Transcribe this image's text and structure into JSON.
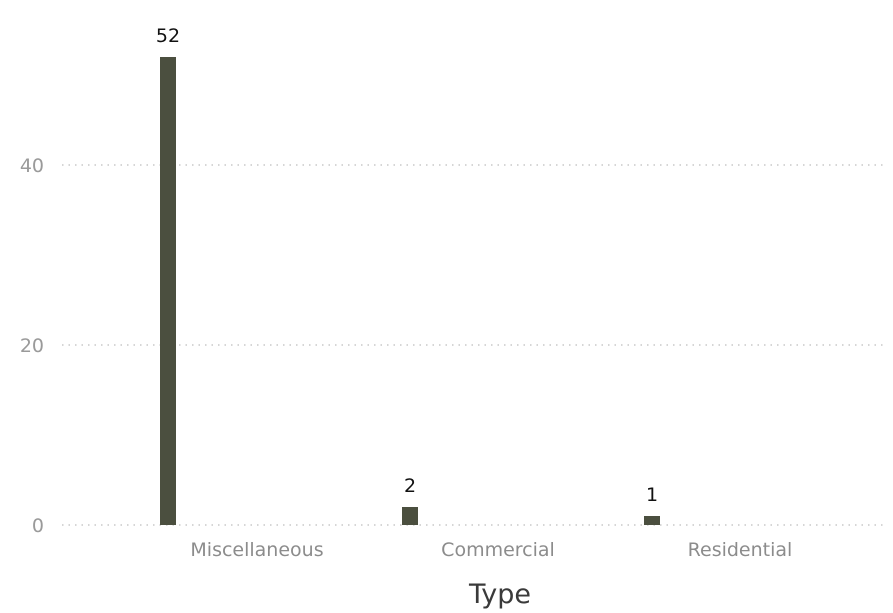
{
  "chart_data": {
    "type": "bar",
    "categories": [
      "Miscellaneous",
      "Commercial",
      "Residential"
    ],
    "values": [
      52,
      2,
      1
    ],
    "data_labels": [
      "52",
      "2",
      "1"
    ],
    "title": "",
    "xlabel": "Type",
    "ylabel": "",
    "ylim": [
      0,
      52
    ],
    "yticks": [
      0,
      20,
      40
    ],
    "grid": true,
    "bar_color": "#4b4f3f"
  }
}
